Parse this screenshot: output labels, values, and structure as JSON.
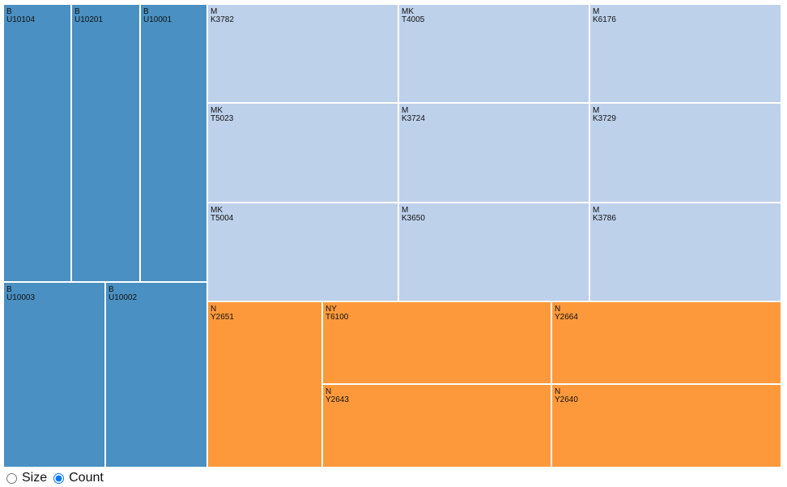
{
  "chart_data": {
    "type": "treemap",
    "measure": "Count",
    "groups": [
      {
        "name": "B",
        "color": "#4a90c2",
        "leaves": [
          {
            "group": "B",
            "label": "U10104",
            "value": 1
          },
          {
            "group": "B",
            "label": "U10201",
            "value": 1
          },
          {
            "group": "B",
            "label": "U10001",
            "value": 1
          },
          {
            "group": "B",
            "label": "U10003",
            "value": 1
          },
          {
            "group": "B",
            "label": "U10002",
            "value": 1
          }
        ]
      },
      {
        "name": "M/MK",
        "color": "#bed1eb",
        "leaves": [
          {
            "group": "M",
            "label": "K3782",
            "value": 1
          },
          {
            "group": "MK",
            "label": "T4005",
            "value": 1
          },
          {
            "group": "M",
            "label": "K6176",
            "value": 1
          },
          {
            "group": "MK",
            "label": "T5023",
            "value": 1
          },
          {
            "group": "M",
            "label": "K3724",
            "value": 1
          },
          {
            "group": "M",
            "label": "K3729",
            "value": 1
          },
          {
            "group": "MK",
            "label": "T5004",
            "value": 1
          },
          {
            "group": "M",
            "label": "K3650",
            "value": 1
          },
          {
            "group": "M",
            "label": "K3786",
            "value": 1
          }
        ]
      },
      {
        "name": "N/NY",
        "color": "#fd993b",
        "leaves": [
          {
            "group": "N",
            "label": "Y2651",
            "value": 1
          },
          {
            "group": "NY",
            "label": "T6100",
            "value": 1
          },
          {
            "group": "N",
            "label": "Y2664",
            "value": 1
          },
          {
            "group": "N",
            "label": "Y2643",
            "value": 1
          },
          {
            "group": "N",
            "label": "Y2640",
            "value": 1
          }
        ]
      }
    ]
  },
  "controls": {
    "options": [
      {
        "label": "Size",
        "checked": false
      },
      {
        "label": "Count",
        "checked": true
      }
    ]
  }
}
